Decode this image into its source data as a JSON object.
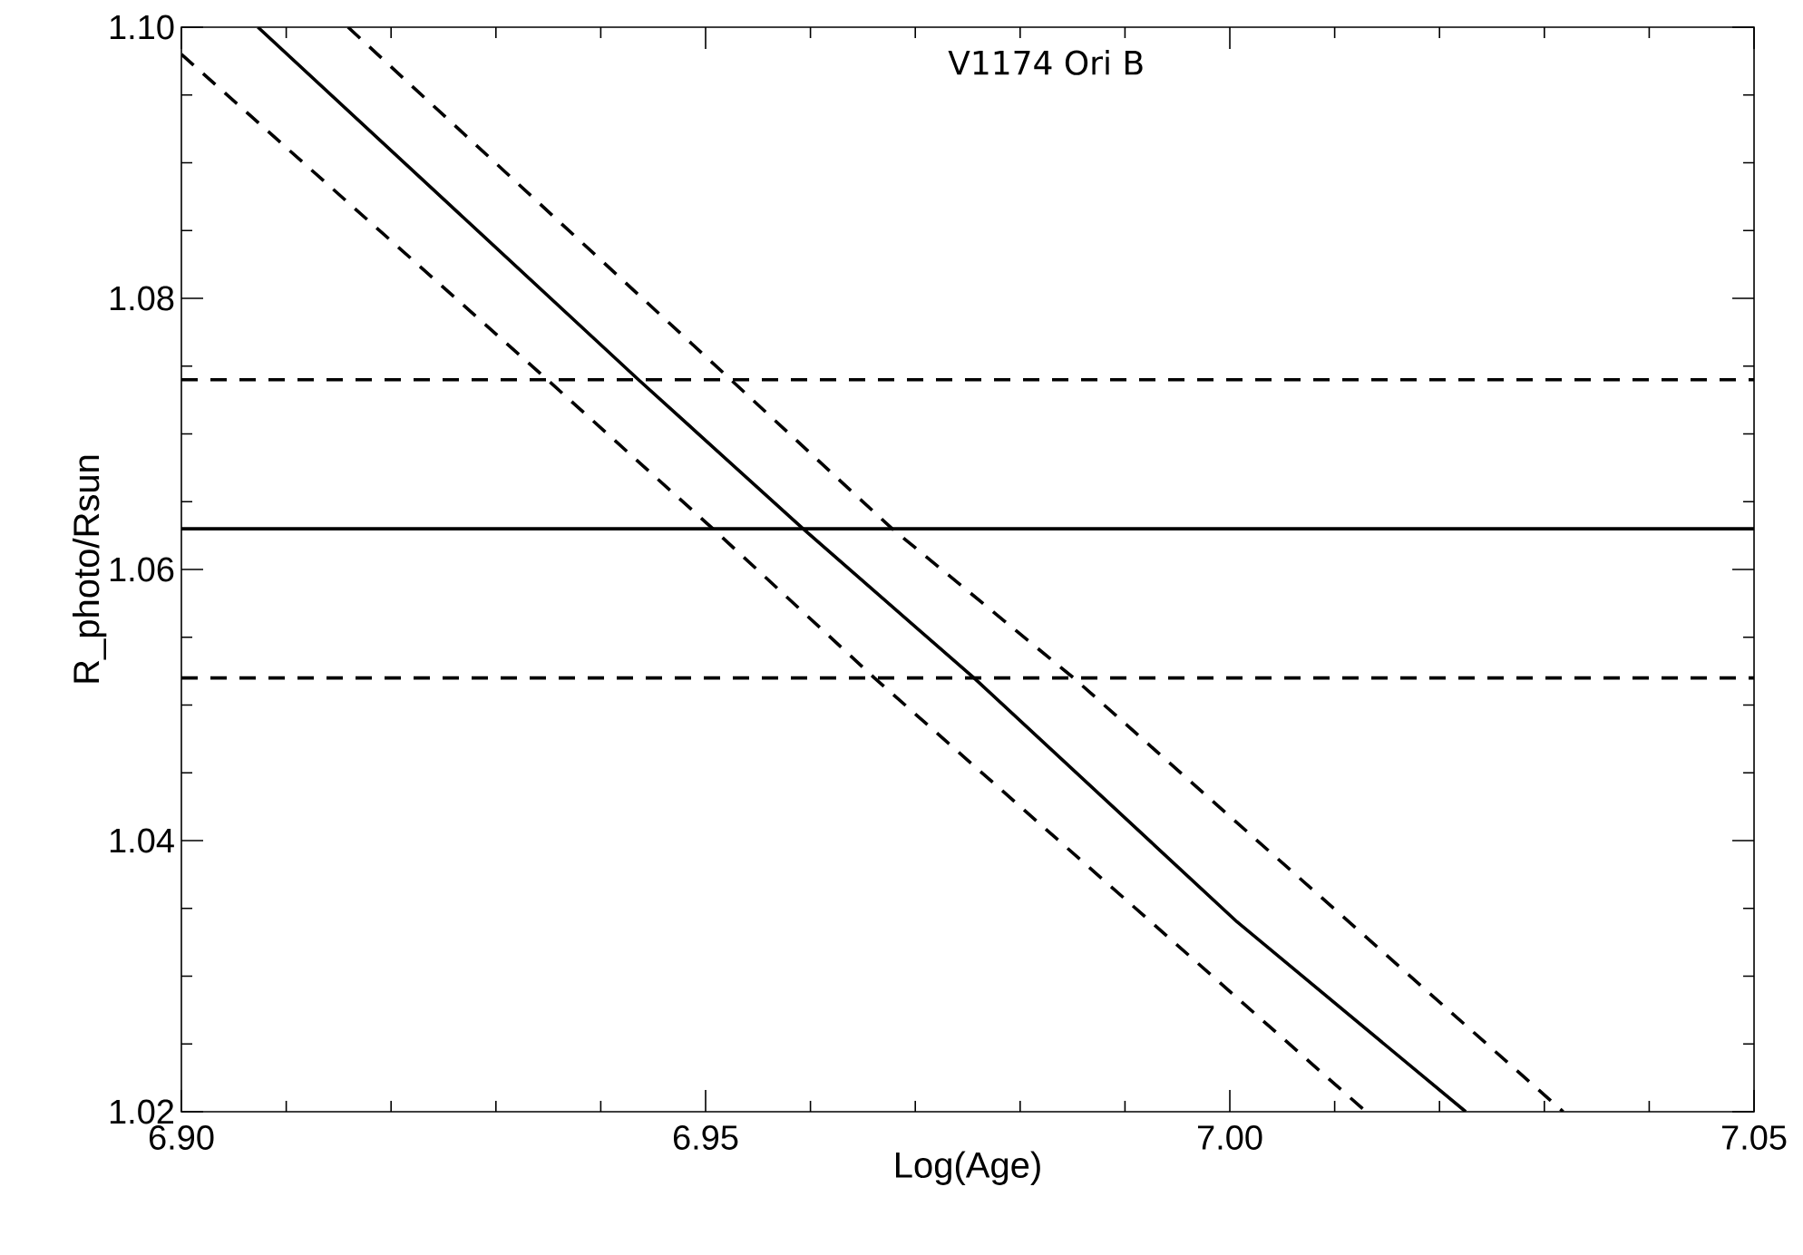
{
  "chart_data": {
    "type": "line",
    "title": "V1174 Ori B",
    "xlabel": "Log(Age)",
    "ylabel": "R_photo/Rsun",
    "xlim": [
      6.9,
      7.05
    ],
    "ylim": [
      1.02,
      1.1
    ],
    "xticks": [
      {
        "value": 6.9,
        "label": "6.90"
      },
      {
        "value": 6.95,
        "label": "6.95"
      },
      {
        "value": 7.0,
        "label": "7.00"
      },
      {
        "value": 7.05,
        "label": "7.05"
      }
    ],
    "yticks": [
      1.02,
      1.04,
      1.06,
      1.08,
      {
        "value": 1.1,
        "label": "1.10"
      }
    ],
    "marker": "none",
    "series": [
      {
        "color": "#000000",
        "line_style": "solid",
        "x": [
          6.9073,
          6.9436,
          6.9593,
          6.9756,
          7.0007,
          7.0225
        ],
        "values": [
          1.1,
          1.074,
          1.063,
          1.052,
          1.034,
          1.02
        ]
      },
      {
        "color": "#000000",
        "line_style": "dashed",
        "x": [
          6.9159,
          6.9524,
          6.9678,
          6.9851,
          7.0318
        ],
        "values": [
          1.1,
          1.074,
          1.063,
          1.052,
          1.02
        ]
      },
      {
        "color": "#000000",
        "line_style": "dashed",
        "x": [
          6.9,
          6.9349,
          6.9507,
          6.9661,
          7.013
        ],
        "values": [
          1.098,
          1.074,
          1.063,
          1.052,
          1.02
        ]
      }
    ],
    "ref_lines": [
      {
        "axis": "y",
        "value": 1.063,
        "color": "#000000",
        "line_style": "solid"
      },
      {
        "axis": "y",
        "value": 1.074,
        "color": "#000000",
        "line_style": "dashed"
      },
      {
        "axis": "y",
        "value": 1.052,
        "color": "#000000",
        "line_style": "dashed"
      }
    ]
  }
}
